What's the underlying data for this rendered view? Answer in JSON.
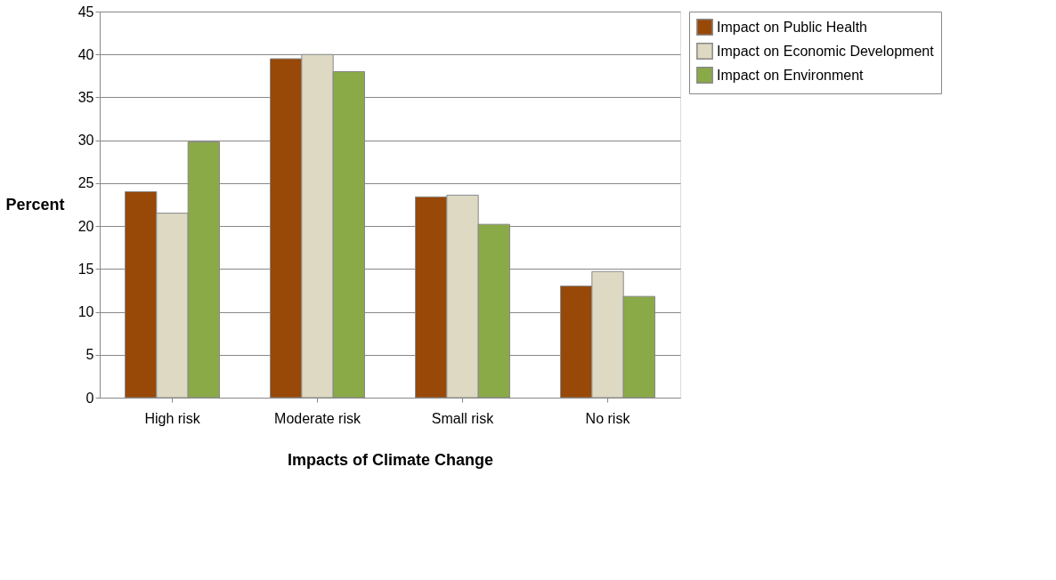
{
  "chart_data": {
    "type": "bar",
    "xlabel": "Impacts of Climate Change",
    "ylabel": "Percent",
    "categories": [
      "High risk",
      "Moderate risk",
      "Small risk",
      "No risk"
    ],
    "series": [
      {
        "name": "Impact on Public Health",
        "color": "#984807",
        "values": [
          24,
          39.5,
          23.4,
          13
        ]
      },
      {
        "name": "Impact on Economic Development",
        "color": "#ddd9c3",
        "values": [
          21.5,
          40,
          23.6,
          14.7
        ]
      },
      {
        "name": "Impact on Environment",
        "color": "#8aaa48",
        "values": [
          29.8,
          38,
          20.2,
          11.8
        ]
      }
    ],
    "ylim": [
      0,
      45
    ],
    "yticks": [
      0,
      5,
      10,
      15,
      20,
      25,
      30,
      35,
      40,
      45
    ],
    "grid": "y",
    "legend": "right"
  }
}
